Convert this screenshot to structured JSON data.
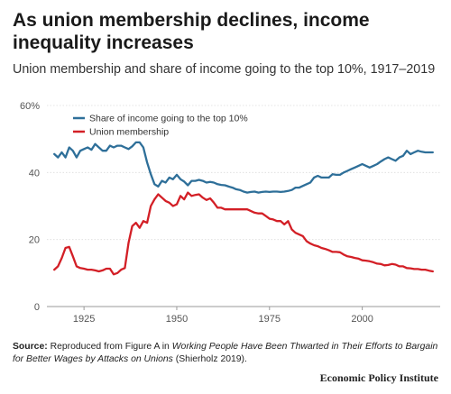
{
  "title": "As union membership declines, income inequality increases",
  "subtitle": "Union membership and share of income going to the top 10%, 1917–2019",
  "source": {
    "label": "Source:",
    "text_before": " Reproduced from Figure A in ",
    "italic": "Working People Have Been Thwarted in Their Efforts to Bargain for Better Wages by Attacks on Unions",
    "text_after": " (Shierholz 2019)."
  },
  "brand": "Economic Policy Institute",
  "chart_data": {
    "type": "line",
    "title": "",
    "xlabel": "",
    "ylabel": "",
    "xlim": [
      1915,
      2021
    ],
    "ylim": [
      0,
      60
    ],
    "x_ticks": [
      1925,
      1950,
      1975,
      2000
    ],
    "y_ticks": [
      0,
      20,
      40,
      60
    ],
    "y_tick_labels": [
      "0",
      "20",
      "40",
      "60%"
    ],
    "grid": "horizontal",
    "legend_position": "top-left",
    "colors": {
      "top10": "#2e6f99",
      "union": "#d31f26"
    },
    "series": [
      {
        "name": "Share of income going to the top 10%",
        "color": "#2e6f99",
        "points": [
          [
            1917,
            45.5
          ],
          [
            1918,
            44.5
          ],
          [
            1919,
            46.0
          ],
          [
            1920,
            44.5
          ],
          [
            1921,
            47.5
          ],
          [
            1922,
            46.5
          ],
          [
            1923,
            44.5
          ],
          [
            1924,
            46.5
          ],
          [
            1925,
            47.0
          ],
          [
            1926,
            47.5
          ],
          [
            1927,
            46.8
          ],
          [
            1928,
            48.5
          ],
          [
            1929,
            47.5
          ],
          [
            1930,
            46.5
          ],
          [
            1931,
            46.5
          ],
          [
            1932,
            48.0
          ],
          [
            1933,
            47.5
          ],
          [
            1934,
            48.0
          ],
          [
            1935,
            48.0
          ],
          [
            1936,
            47.5
          ],
          [
            1937,
            47.0
          ],
          [
            1938,
            47.8
          ],
          [
            1939,
            49.0
          ],
          [
            1940,
            49.0
          ],
          [
            1941,
            47.5
          ],
          [
            1942,
            43.0
          ],
          [
            1943,
            39.5
          ],
          [
            1944,
            36.5
          ],
          [
            1945,
            35.8
          ],
          [
            1946,
            37.5
          ],
          [
            1947,
            37.0
          ],
          [
            1948,
            38.5
          ],
          [
            1949,
            38.0
          ],
          [
            1950,
            39.3
          ],
          [
            1951,
            38.0
          ],
          [
            1952,
            37.3
          ],
          [
            1953,
            36.2
          ],
          [
            1954,
            37.5
          ],
          [
            1955,
            37.5
          ],
          [
            1956,
            37.8
          ],
          [
            1957,
            37.5
          ],
          [
            1958,
            37.0
          ],
          [
            1959,
            37.2
          ],
          [
            1960,
            37.0
          ],
          [
            1961,
            36.5
          ],
          [
            1962,
            36.3
          ],
          [
            1963,
            36.2
          ],
          [
            1964,
            35.8
          ],
          [
            1965,
            35.5
          ],
          [
            1966,
            35.0
          ],
          [
            1967,
            34.8
          ],
          [
            1968,
            34.3
          ],
          [
            1969,
            34.0
          ],
          [
            1970,
            34.2
          ],
          [
            1971,
            34.3
          ],
          [
            1972,
            34.0
          ],
          [
            1973,
            34.2
          ],
          [
            1974,
            34.3
          ],
          [
            1975,
            34.2
          ],
          [
            1976,
            34.3
          ],
          [
            1977,
            34.3
          ],
          [
            1978,
            34.2
          ],
          [
            1979,
            34.3
          ],
          [
            1980,
            34.5
          ],
          [
            1981,
            34.8
          ],
          [
            1982,
            35.5
          ],
          [
            1983,
            35.5
          ],
          [
            1984,
            36.0
          ],
          [
            1985,
            36.5
          ],
          [
            1986,
            37.0
          ],
          [
            1987,
            38.5
          ],
          [
            1988,
            39.0
          ],
          [
            1989,
            38.5
          ],
          [
            1990,
            38.5
          ],
          [
            1991,
            38.5
          ],
          [
            1992,
            39.5
          ],
          [
            1993,
            39.3
          ],
          [
            1994,
            39.3
          ],
          [
            1995,
            40.0
          ],
          [
            1996,
            40.5
          ],
          [
            1997,
            41.0
          ],
          [
            1998,
            41.5
          ],
          [
            1999,
            42.0
          ],
          [
            2000,
            42.5
          ],
          [
            2001,
            42.0
          ],
          [
            2002,
            41.5
          ],
          [
            2003,
            42.0
          ],
          [
            2004,
            42.5
          ],
          [
            2005,
            43.3
          ],
          [
            2006,
            44.0
          ],
          [
            2007,
            44.5
          ],
          [
            2008,
            44.0
          ],
          [
            2009,
            43.5
          ],
          [
            2010,
            44.5
          ],
          [
            2011,
            45.0
          ],
          [
            2012,
            46.5
          ],
          [
            2013,
            45.5
          ],
          [
            2014,
            46.0
          ],
          [
            2015,
            46.5
          ],
          [
            2016,
            46.2
          ],
          [
            2017,
            46.0
          ],
          [
            2018,
            46.0
          ],
          [
            2019,
            46.0
          ]
        ]
      },
      {
        "name": "Union membership",
        "color": "#d31f26",
        "points": [
          [
            1917,
            11.0
          ],
          [
            1918,
            12.0
          ],
          [
            1919,
            14.5
          ],
          [
            1920,
            17.5
          ],
          [
            1921,
            17.8
          ],
          [
            1922,
            15.0
          ],
          [
            1923,
            12.0
          ],
          [
            1924,
            11.5
          ],
          [
            1925,
            11.3
          ],
          [
            1926,
            11.0
          ],
          [
            1927,
            11.0
          ],
          [
            1928,
            10.8
          ],
          [
            1929,
            10.5
          ],
          [
            1930,
            10.8
          ],
          [
            1931,
            11.3
          ],
          [
            1932,
            11.3
          ],
          [
            1933,
            9.6
          ],
          [
            1934,
            10.0
          ],
          [
            1935,
            11.0
          ],
          [
            1936,
            11.5
          ],
          [
            1937,
            19.0
          ],
          [
            1938,
            24.0
          ],
          [
            1939,
            25.0
          ],
          [
            1940,
            23.5
          ],
          [
            1941,
            25.5
          ],
          [
            1942,
            25.0
          ],
          [
            1943,
            30.0
          ],
          [
            1944,
            32.0
          ],
          [
            1945,
            33.5
          ],
          [
            1946,
            32.5
          ],
          [
            1947,
            31.5
          ],
          [
            1948,
            31.0
          ],
          [
            1949,
            30.0
          ],
          [
            1950,
            30.5
          ],
          [
            1951,
            33.0
          ],
          [
            1952,
            32.0
          ],
          [
            1953,
            34.0
          ],
          [
            1954,
            33.0
          ],
          [
            1955,
            33.3
          ],
          [
            1956,
            33.5
          ],
          [
            1957,
            32.5
          ],
          [
            1958,
            31.8
          ],
          [
            1959,
            32.3
          ],
          [
            1960,
            31.0
          ],
          [
            1961,
            29.5
          ],
          [
            1962,
            29.5
          ],
          [
            1963,
            29.0
          ],
          [
            1964,
            29.0
          ],
          [
            1965,
            29.0
          ],
          [
            1966,
            29.0
          ],
          [
            1967,
            29.0
          ],
          [
            1968,
            29.0
          ],
          [
            1969,
            29.0
          ],
          [
            1970,
            28.5
          ],
          [
            1971,
            28.0
          ],
          [
            1972,
            27.8
          ],
          [
            1973,
            27.8
          ],
          [
            1974,
            27.0
          ],
          [
            1975,
            26.2
          ],
          [
            1976,
            26.0
          ],
          [
            1977,
            25.5
          ],
          [
            1978,
            25.5
          ],
          [
            1979,
            24.5
          ],
          [
            1980,
            25.5
          ],
          [
            1981,
            23.0
          ],
          [
            1982,
            22.0
          ],
          [
            1983,
            21.5
          ],
          [
            1984,
            21.0
          ],
          [
            1985,
            19.5
          ],
          [
            1986,
            18.8
          ],
          [
            1987,
            18.3
          ],
          [
            1988,
            18.0
          ],
          [
            1989,
            17.5
          ],
          [
            1990,
            17.2
          ],
          [
            1991,
            16.8
          ],
          [
            1992,
            16.3
          ],
          [
            1993,
            16.3
          ],
          [
            1994,
            16.2
          ],
          [
            1995,
            15.5
          ],
          [
            1996,
            15.0
          ],
          [
            1997,
            14.8
          ],
          [
            1998,
            14.5
          ],
          [
            1999,
            14.3
          ],
          [
            2000,
            13.8
          ],
          [
            2001,
            13.7
          ],
          [
            2002,
            13.5
          ],
          [
            2003,
            13.2
          ],
          [
            2004,
            12.8
          ],
          [
            2005,
            12.7
          ],
          [
            2006,
            12.3
          ],
          [
            2007,
            12.4
          ],
          [
            2008,
            12.7
          ],
          [
            2009,
            12.5
          ],
          [
            2010,
            12.0
          ],
          [
            2011,
            12.0
          ],
          [
            2012,
            11.5
          ],
          [
            2013,
            11.4
          ],
          [
            2014,
            11.2
          ],
          [
            2015,
            11.2
          ],
          [
            2016,
            11.0
          ],
          [
            2017,
            11.0
          ],
          [
            2018,
            10.7
          ],
          [
            2019,
            10.5
          ]
        ]
      }
    ]
  }
}
